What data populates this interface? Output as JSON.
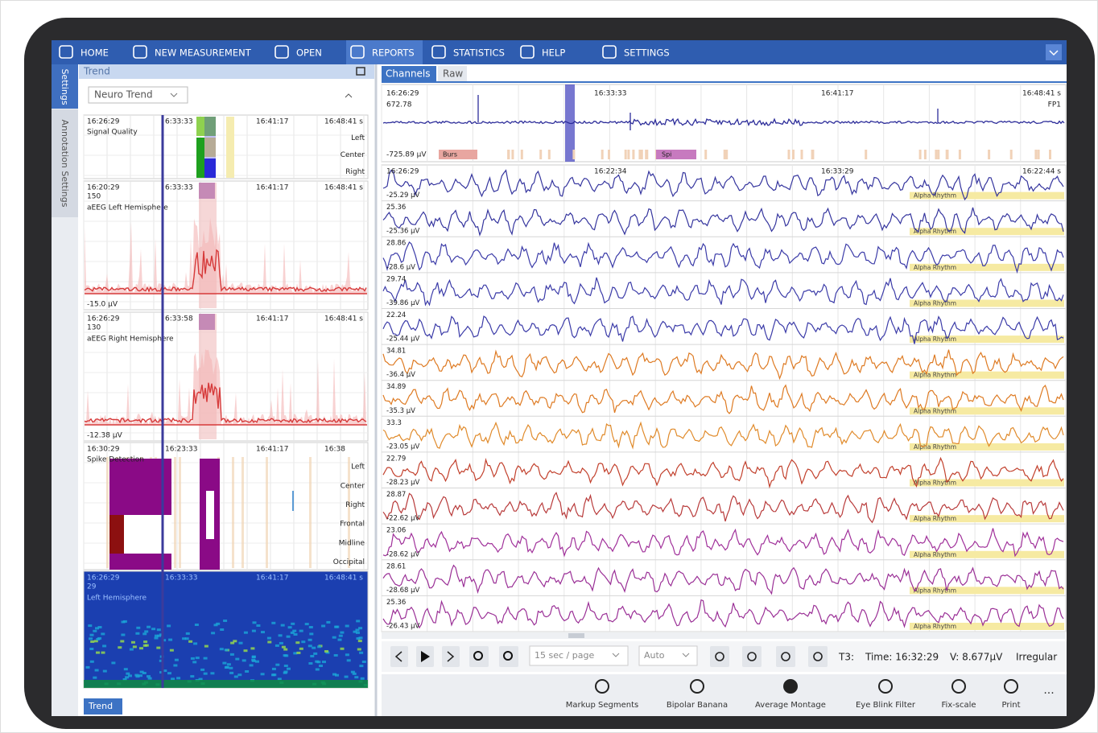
{
  "nav": {
    "items": [
      "HOME",
      "NEW MEASUREMENT",
      "OPEN",
      "REPORTS",
      "STATISTICS",
      "HELP",
      "SETTINGS"
    ],
    "active": 3
  },
  "side_tabs": [
    "Settings",
    "Annotation Settings"
  ],
  "trend": {
    "title": "Trend",
    "selector": "Neuro Trend",
    "footer_tab": "Trend",
    "panels": [
      {
        "times": [
          "16:26:29",
          "6:33:33",
          "16:41:17",
          "16:48:41 s"
        ],
        "label": "Signal Quality",
        "rows": [
          "Left",
          "Center",
          "Right"
        ]
      },
      {
        "times": [
          "16:20:29",
          "6:33:33",
          "16:41:17",
          "16:48:41 s"
        ],
        "top": "150",
        "label": "aEEG Left Hemisphere",
        "bottom": "-15.0 µV"
      },
      {
        "times": [
          "16:26:29",
          "6:33:58",
          "16:41:17",
          "16:48:41 s"
        ],
        "top": "130",
        "label": "aEEG Right Hemisphere",
        "bottom": "-12.38 µV"
      },
      {
        "times": [
          "16:30:29",
          "16:23:33",
          "16:41:17",
          "16:38"
        ],
        "label": "Spike Detection",
        "rows": [
          "Left",
          "Center",
          "Right",
          "Frontal",
          "Midline",
          "Occipital"
        ]
      },
      {
        "times": [
          "16:26:29",
          "16:33:33",
          "16:41:17",
          "16:48:41 s"
        ],
        "top": "29",
        "label": "Left Hemisphere"
      }
    ]
  },
  "channels": {
    "tabs": [
      "Channels",
      "Raw"
    ],
    "overview": {
      "times": [
        "16:26:29",
        "16:33:33",
        "16:41:17",
        "16:48:41 s"
      ],
      "top": "672.78",
      "channel": "FP1",
      "bottom": "-725.89 µV",
      "events": [
        "Burs",
        "Spi"
      ]
    },
    "times": [
      "16:26:29",
      "16:22:34",
      "16:33:29",
      "16:22:44 s"
    ],
    "rows": [
      {
        "bottom": "-25.29 µV",
        "annotation": "Alpha Rhythm",
        "color": "#35359e"
      },
      {
        "top": "25.36",
        "bottom": "-25.36 µV",
        "annotation": "Alpha Rhythm",
        "color": "#35359e"
      },
      {
        "top": "28.86",
        "bottom": "-28.6 µV",
        "annotation": "Alpha Rhythm",
        "color": "#3b3ba8"
      },
      {
        "top": "29.74",
        "bottom": "-39.86 µV",
        "annotation": "Alpha Rhythm",
        "color": "#3b3ba8"
      },
      {
        "top": "22.24",
        "bottom": "-25.44 µV",
        "annotation": "Alpha Rhythm",
        "color": "#3b3ba8"
      },
      {
        "top": "34.81",
        "bottom": "-36.4 µV",
        "annotation": "Alpha Rhythm",
        "color": "#de7a22"
      },
      {
        "top": "34.89",
        "bottom": "-35.3 µV",
        "annotation": "Alpha Rhythm",
        "color": "#de7a22"
      },
      {
        "top": "33.3",
        "bottom": "-23.05 µV",
        "annotation": "Alpha Rhythm",
        "color": "#e08a2a"
      },
      {
        "top": "22.79",
        "bottom": "-28.23 µV",
        "annotation": "Alpha Rhythm",
        "color": "#c2402c"
      },
      {
        "top": "28.87",
        "bottom": "-22.62 µV",
        "annotation": "Alpha Rhythm",
        "color": "#b83a3a"
      },
      {
        "top": "23.06",
        "bottom": "-28.62 µV",
        "annotation": "Alpha Rhythm",
        "color": "#a0309a"
      },
      {
        "top": "28.61",
        "bottom": "-28.68 µV",
        "annotation": "Alpha Rhythm",
        "color": "#9a2f96"
      },
      {
        "top": "25.36",
        "bottom": "-26.43 µV",
        "annotation": "Alpha Rhythm",
        "color": "#9a2f96"
      }
    ]
  },
  "toolbar": {
    "page": "15 sec / page",
    "scale": "Auto",
    "channel": "T3:",
    "time": "Time: 16:32:29",
    "voltage": "V: 8.677µV",
    "status": "Irregular"
  },
  "actions": [
    "Markup Segments",
    "Bipolar Banana",
    "Average Montage",
    "Eye Blink Filter",
    "Fix-scale",
    "Print",
    "..."
  ]
}
